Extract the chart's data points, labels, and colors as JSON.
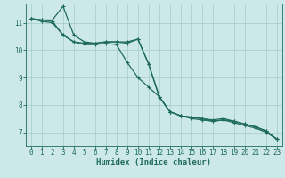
{
  "title": "",
  "xlabel": "Humidex (Indice chaleur)",
  "bg_color": "#cde8e8",
  "grid_color": "#aacfcf",
  "line_color": "#1e6b5e",
  "xlim": [
    -0.5,
    23.5
  ],
  "ylim": [
    6.5,
    11.7
  ],
  "yticks": [
    7,
    8,
    9,
    10,
    11
  ],
  "xticks": [
    0,
    1,
    2,
    3,
    4,
    5,
    6,
    7,
    8,
    9,
    10,
    11,
    12,
    13,
    14,
    15,
    16,
    17,
    18,
    19,
    20,
    21,
    22,
    23
  ],
  "series": [
    [
      11.15,
      11.1,
      11.1,
      11.6,
      10.55,
      10.3,
      10.25,
      10.3,
      10.3,
      10.3,
      10.4,
      9.5,
      8.3,
      7.75,
      7.6,
      7.55,
      7.5,
      7.45,
      7.5,
      7.4,
      7.3,
      7.2,
      7.05,
      6.75
    ],
    [
      11.15,
      11.1,
      11.05,
      10.55,
      10.3,
      10.25,
      10.25,
      10.3,
      10.3,
      10.25,
      10.4,
      9.5,
      8.3,
      7.75,
      7.6,
      7.5,
      7.45,
      7.4,
      7.45,
      7.35,
      7.25,
      7.15,
      7.0,
      6.75
    ],
    [
      11.15,
      11.05,
      11.0,
      10.55,
      10.3,
      10.2,
      10.2,
      10.25,
      10.2,
      9.55,
      9.0,
      8.65,
      8.3,
      7.75,
      7.6,
      7.55,
      7.5,
      7.4,
      7.45,
      7.4,
      7.3,
      7.2,
      7.05,
      6.75
    ]
  ],
  "tick_fontsize": 5.5,
  "xlabel_fontsize": 6.5,
  "marker_size": 2.5,
  "line_width": 0.9
}
